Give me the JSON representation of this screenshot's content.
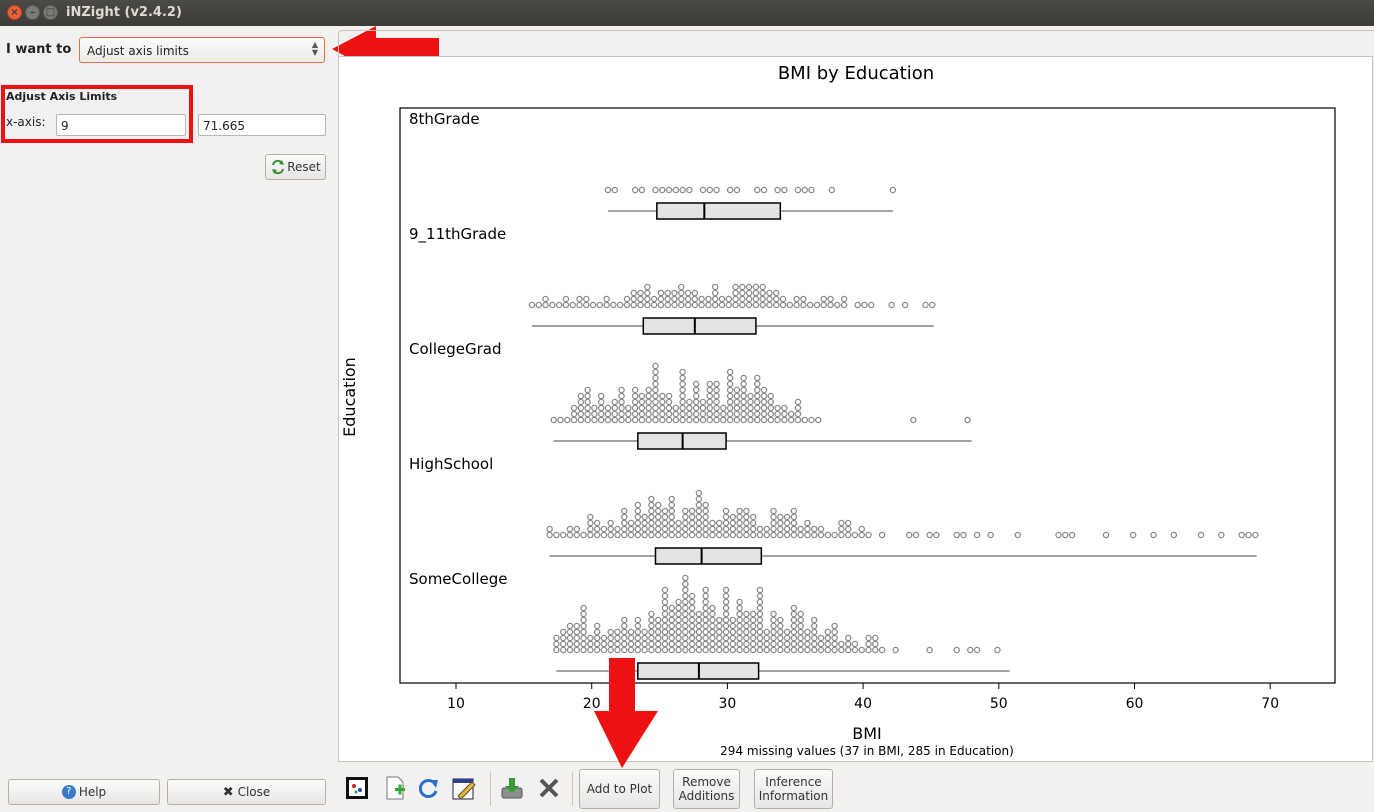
{
  "window": {
    "title": "iNZight (v2.4.2)"
  },
  "left_panel": {
    "i_want_label": "I want to",
    "select_value": "Adjust axis limits",
    "section_title": "Adjust Axis Limits",
    "x_axis_label": "x-axis:",
    "x_min": "9",
    "x_max": "71.665",
    "reset_label": "Reset",
    "help_label": "Help",
    "close_label": "Close"
  },
  "toolbar": {
    "add_to_plot": "Add to Plot",
    "remove_line1": "Remove",
    "remove_line2": "Additions",
    "inference_line1": "Inference",
    "inference_line2": "Information",
    "icons": [
      "new-window-icon",
      "add-plot-icon",
      "refresh-icon",
      "edit-icon",
      "save-icon",
      "delete-icon"
    ]
  },
  "colors": {
    "accent_red": "#ee1111",
    "point_stroke": "#8a8a8a",
    "box_fill": "#e4e4e4"
  },
  "chart_data": {
    "type": "dotplot-with-boxplots",
    "title": "BMI by Education",
    "xlabel": "BMI",
    "ylabel": "Education",
    "footnote": "294 missing values (37 in BMI, 285 in Education)",
    "xlim": [
      6,
      73
    ],
    "xticks": [
      10,
      20,
      30,
      40,
      50,
      60,
      70
    ],
    "grid": false,
    "groups": [
      {
        "name": "8thGrade",
        "min": 21.2,
        "q1": 24.8,
        "median": 28.3,
        "q3": 33.9,
        "max": 42.2,
        "stack_max": 1
      },
      {
        "name": "9_11thGrade",
        "min": 15.6,
        "q1": 23.8,
        "median": 27.6,
        "q3": 32.1,
        "max": 45.2,
        "stack_max": 4
      },
      {
        "name": "CollegeGrad",
        "min": 17.2,
        "q1": 23.4,
        "median": 26.7,
        "q3": 29.9,
        "max": 48.0,
        "stack_max": 10
      },
      {
        "name": "HighSchool",
        "min": 16.9,
        "q1": 24.7,
        "median": 28.1,
        "q3": 32.5,
        "max": 69.0,
        "stack_max": 7
      },
      {
        "name": "SomeCollege",
        "min": 17.4,
        "q1": 23.4,
        "median": 27.9,
        "q3": 32.3,
        "max": 50.8,
        "stack_max": 11
      }
    ]
  }
}
